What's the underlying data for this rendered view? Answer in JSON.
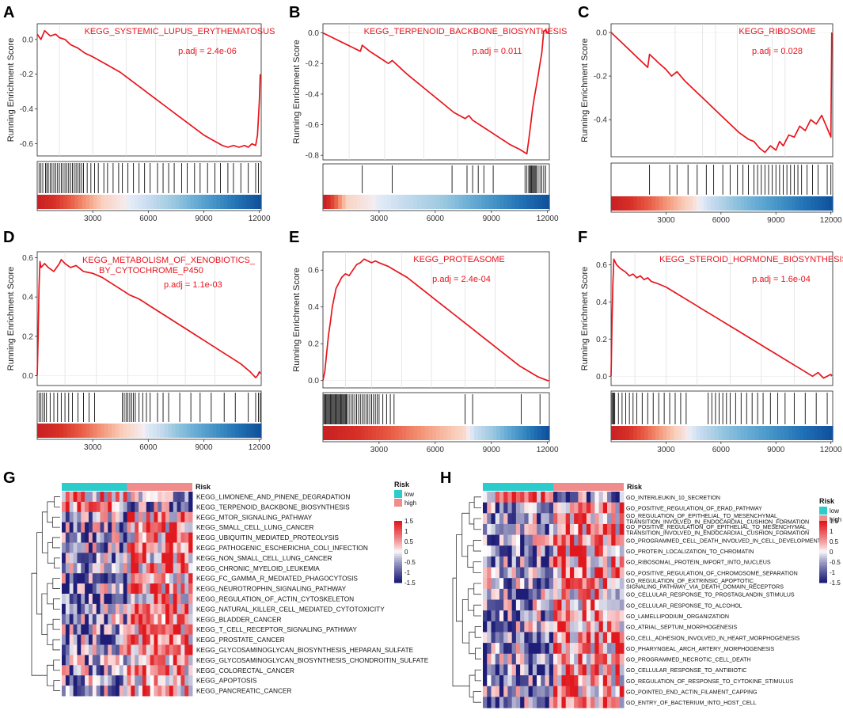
{
  "panel_letters": [
    "A",
    "B",
    "C",
    "D",
    "E",
    "F",
    "G",
    "H"
  ],
  "gsea_y_title": "Running Enrichment Score",
  "gsea_x_ticks": [
    3000,
    6000,
    9000,
    12000
  ],
  "chart_data": [
    {
      "type": "line",
      "panel": "A",
      "title": "KEGG_SYSTEMIC_LUPUS_ERYTHEMATOSUS",
      "padj": "p.adj = 2.4e-06",
      "xlim": [
        0,
        12100
      ],
      "ylim": [
        -0.67,
        0.09
      ],
      "yticks": [
        0.0,
        -0.2,
        -0.4,
        -0.6
      ],
      "ytick_labels": [
        "0.0",
        "-0.2",
        "-0.4",
        "-0.6"
      ],
      "x": [
        0,
        200,
        400,
        700,
        1000,
        1200,
        1500,
        1800,
        2200,
        2600,
        3000,
        3500,
        4000,
        4500,
        5000,
        5500,
        6000,
        6500,
        7000,
        7500,
        8000,
        8500,
        9000,
        9500,
        10000,
        10300,
        10600,
        10900,
        11200,
        11400,
        11600,
        11800,
        11900,
        11950,
        12000,
        12050
      ],
      "y": [
        0.03,
        0.0,
        0.05,
        0.02,
        0.03,
        0.01,
        0.0,
        -0.03,
        -0.05,
        -0.08,
        -0.1,
        -0.13,
        -0.16,
        -0.19,
        -0.23,
        -0.27,
        -0.31,
        -0.35,
        -0.39,
        -0.43,
        -0.47,
        -0.51,
        -0.55,
        -0.58,
        -0.61,
        -0.62,
        -0.61,
        -0.62,
        -0.61,
        -0.62,
        -0.6,
        -0.61,
        -0.55,
        -0.45,
        -0.35,
        -0.2
      ],
      "hits": [
        100,
        200,
        300,
        450,
        520,
        600,
        700,
        800,
        900,
        1000,
        1100,
        1200,
        1300,
        1400,
        1500,
        1600,
        1700,
        1800,
        1900,
        2000,
        2100,
        2200,
        2300,
        2400,
        2500,
        2700,
        2900,
        3100,
        3300,
        3600,
        3800,
        4100,
        4400,
        4600,
        4900,
        5200,
        5500,
        5800,
        6100,
        6500,
        6800,
        7100,
        7400,
        7800,
        8100,
        8500,
        8800,
        9200,
        9600,
        9900,
        10300,
        10600,
        11000,
        11400,
        11800,
        11950
      ],
      "grid": [
        1200,
        3000,
        4800,
        6400,
        8100,
        9700
      ]
    },
    {
      "type": "line",
      "panel": "B",
      "title": "KEGG_TERPENOID_BACKBONE_BIOSYNTHESIS",
      "padj": "p.adj = 0.011",
      "xlim": [
        0,
        12100
      ],
      "ylim": [
        -0.83,
        0.06
      ],
      "yticks": [
        0.0,
        -0.2,
        -0.4,
        -0.6,
        -0.8
      ],
      "ytick_labels": [
        "0.0",
        "-0.2",
        "-0.4",
        "-0.6",
        "-0.8"
      ],
      "x": [
        0,
        500,
        1000,
        1500,
        2000,
        2100,
        2500,
        3000,
        3500,
        3700,
        4500,
        5500,
        6500,
        7000,
        7600,
        7800,
        8000,
        8500,
        9000,
        9500,
        10000,
        10500,
        10900,
        11000,
        11100,
        11200,
        11300,
        11400,
        11500,
        11600,
        11700,
        11800,
        11900,
        12000,
        12100
      ],
      "y": [
        0.0,
        -0.03,
        -0.06,
        -0.09,
        -0.12,
        -0.08,
        -0.12,
        -0.16,
        -0.2,
        -0.18,
        -0.27,
        -0.37,
        -0.47,
        -0.52,
        -0.56,
        -0.54,
        -0.57,
        -0.61,
        -0.65,
        -0.69,
        -0.73,
        -0.76,
        -0.79,
        -0.7,
        -0.6,
        -0.5,
        -0.42,
        -0.35,
        -0.28,
        -0.2,
        -0.13,
        0.01,
        0.02,
        0.0,
        0.0
      ],
      "hits": [
        2100,
        3700,
        6900,
        7700,
        8000,
        8300,
        8600,
        9100,
        10800,
        10900,
        11000,
        11050,
        11100,
        11150,
        11200,
        11250,
        11300,
        11350,
        11400,
        11500,
        11600,
        11700,
        11800,
        11900
      ],
      "grid": [
        1400,
        3300,
        5400,
        7200,
        9200,
        10700
      ]
    },
    {
      "type": "line",
      "panel": "C",
      "title": "KEGG_RIBOSOME",
      "padj": "p.adj = 0.028",
      "xlim": [
        0,
        12100
      ],
      "ylim": [
        -0.57,
        0.04
      ],
      "yticks": [
        0.0,
        -0.2,
        -0.4
      ],
      "ytick_labels": [
        "0.0",
        "-0.2",
        "-0.4"
      ],
      "x": [
        0,
        500,
        1000,
        1500,
        2000,
        2100,
        2600,
        3000,
        3300,
        3600,
        4000,
        4500,
        5000,
        5500,
        6000,
        6500,
        7000,
        7500,
        7800,
        8100,
        8400,
        8700,
        9000,
        9200,
        9400,
        9700,
        10000,
        10300,
        10600,
        10900,
        11200,
        11500,
        11800,
        12000,
        12050
      ],
      "y": [
        0.0,
        -0.04,
        -0.08,
        -0.12,
        -0.16,
        -0.1,
        -0.14,
        -0.17,
        -0.2,
        -0.18,
        -0.22,
        -0.26,
        -0.3,
        -0.34,
        -0.38,
        -0.42,
        -0.46,
        -0.49,
        -0.5,
        -0.53,
        -0.55,
        -0.52,
        -0.54,
        -0.5,
        -0.52,
        -0.47,
        -0.48,
        -0.43,
        -0.45,
        -0.4,
        -0.42,
        -0.38,
        -0.44,
        -0.48,
        0.0
      ],
      "hits": [
        2100,
        3200,
        3600,
        4200,
        4700,
        5200,
        5600,
        6100,
        6500,
        6900,
        7200,
        7500,
        7800,
        8000,
        8200,
        8400,
        8600,
        8800,
        9000,
        9200,
        9400,
        9600,
        9800,
        10000,
        10200,
        10400,
        10700,
        11000,
        11300,
        11800,
        12000
      ],
      "grid": [
        3500,
        5000,
        5700,
        6900,
        8800,
        9500
      ]
    },
    {
      "type": "line",
      "panel": "D",
      "title": "KEGG_METABOLISM_OF_XENOBIOTICS_",
      "title2": "BY_CYTOCHROME_P450",
      "padj": "p.adj = 1.1e-03",
      "xlim": [
        0,
        12100
      ],
      "ylim": [
        -0.05,
        0.63
      ],
      "yticks": [
        0.0,
        0.2,
        0.4,
        0.6
      ],
      "ytick_labels": [
        "0.0",
        "0.2",
        "0.4",
        "0.6"
      ],
      "x": [
        0,
        50,
        100,
        150,
        200,
        400,
        600,
        900,
        1200,
        1300,
        1500,
        1800,
        2100,
        2500,
        3000,
        3500,
        4000,
        4500,
        5000,
        5500,
        6000,
        6500,
        7000,
        7500,
        8000,
        8500,
        9000,
        9500,
        10000,
        10500,
        11000,
        11500,
        11800,
        11900,
        12000,
        12050
      ],
      "y": [
        0.0,
        0.2,
        0.45,
        0.58,
        0.55,
        0.57,
        0.55,
        0.53,
        0.57,
        0.59,
        0.57,
        0.55,
        0.56,
        0.53,
        0.52,
        0.5,
        0.47,
        0.44,
        0.41,
        0.39,
        0.36,
        0.33,
        0.3,
        0.27,
        0.24,
        0.21,
        0.18,
        0.15,
        0.12,
        0.09,
        0.06,
        0.02,
        -0.01,
        0.0,
        0.02,
        0.01
      ],
      "hits": [
        100,
        200,
        300,
        400,
        500,
        700,
        900,
        1100,
        1300,
        1500,
        1700,
        1900,
        2200,
        2500,
        2800,
        3100,
        4600,
        4700,
        4800,
        4900,
        5000,
        5100,
        5200,
        5300,
        5500,
        5700,
        5900,
        6100,
        6500,
        6800,
        7100,
        7700,
        8300,
        8800,
        9400,
        10100,
        10700,
        11400,
        11800,
        11950,
        12050
      ],
      "grid": [
        1500,
        3200,
        4900,
        6500,
        8000,
        9600
      ]
    },
    {
      "type": "line",
      "panel": "E",
      "title": "KEGG_PROTEASOME",
      "padj": "p.adj = 2.4e-04",
      "xlim": [
        0,
        12100
      ],
      "ylim": [
        -0.04,
        0.7
      ],
      "yticks": [
        0.0,
        0.2,
        0.4,
        0.6
      ],
      "ytick_labels": [
        "0.0",
        "0.2",
        "0.4",
        "0.6"
      ],
      "x": [
        0,
        100,
        200,
        300,
        400,
        500,
        600,
        700,
        800,
        900,
        1000,
        1200,
        1400,
        1600,
        1800,
        2000,
        2200,
        2400,
        2600,
        2800,
        3000,
        3500,
        4000,
        4500,
        5000,
        5500,
        6000,
        6500,
        7000,
        7500,
        8000,
        8500,
        9000,
        9500,
        10000,
        10500,
        11000,
        11500,
        12000,
        12100
      ],
      "y": [
        0.0,
        0.05,
        0.15,
        0.25,
        0.32,
        0.4,
        0.45,
        0.5,
        0.52,
        0.54,
        0.56,
        0.58,
        0.57,
        0.6,
        0.63,
        0.64,
        0.66,
        0.65,
        0.64,
        0.65,
        0.64,
        0.62,
        0.59,
        0.56,
        0.52,
        0.48,
        0.44,
        0.4,
        0.36,
        0.32,
        0.28,
        0.24,
        0.2,
        0.16,
        0.12,
        0.08,
        0.05,
        0.02,
        0.0,
        0.0
      ],
      "hits": [
        50,
        100,
        150,
        200,
        250,
        300,
        350,
        400,
        450,
        500,
        550,
        600,
        650,
        700,
        750,
        800,
        850,
        900,
        950,
        1000,
        1050,
        1100,
        1150,
        1200,
        1250,
        1300,
        1400,
        1500,
        1600,
        1700,
        1800,
        1900,
        2000,
        2100,
        2200,
        2300,
        2400,
        2500,
        2600,
        2700,
        2800,
        2900,
        3000,
        3200,
        3400,
        3600,
        3800,
        7600,
        8000,
        10600,
        11600
      ],
      "grid": [
        1200,
        2600,
        4200,
        5800,
        7600,
        9200
      ]
    },
    {
      "type": "line",
      "panel": "F",
      "title": "KEGG_STEROID_HORMONE_BIOSYNTHESIS",
      "padj": "p.adj = 1.6e-04",
      "xlim": [
        0,
        12100
      ],
      "ylim": [
        -0.05,
        0.67
      ],
      "yticks": [
        0.0,
        0.2,
        0.4,
        0.6
      ],
      "ytick_labels": [
        "0.0",
        "0.2",
        "0.4",
        "0.6"
      ],
      "x": [
        0,
        50,
        100,
        150,
        300,
        500,
        800,
        1000,
        1200,
        1400,
        1600,
        1800,
        2000,
        2200,
        2500,
        3000,
        3500,
        4000,
        4500,
        5000,
        5500,
        6000,
        6500,
        7000,
        7500,
        8000,
        8500,
        9000,
        9500,
        10000,
        10500,
        11000,
        11300,
        11600,
        11800,
        12000,
        12050
      ],
      "y": [
        0.0,
        0.3,
        0.5,
        0.63,
        0.6,
        0.58,
        0.56,
        0.54,
        0.55,
        0.53,
        0.54,
        0.52,
        0.53,
        0.51,
        0.5,
        0.48,
        0.45,
        0.42,
        0.39,
        0.36,
        0.33,
        0.3,
        0.27,
        0.24,
        0.21,
        0.18,
        0.15,
        0.12,
        0.09,
        0.06,
        0.03,
        0.0,
        0.02,
        -0.01,
        0.0,
        0.01,
        0.0
      ],
      "hits": [
        50,
        100,
        150,
        200,
        400,
        600,
        800,
        1000,
        1200,
        1400,
        1700,
        2000,
        2300,
        2600,
        2900,
        3200,
        3500,
        3800,
        4100,
        5300,
        5500,
        5700,
        5900,
        6100,
        6300,
        6500,
        6800,
        7100,
        7400,
        7700,
        8000,
        8300,
        8700,
        9100,
        9500,
        10000,
        10600,
        11200,
        11800
      ],
      "grid": [
        1300,
        3000,
        4700,
        6500,
        8200,
        10000
      ]
    },
    {
      "type": "heatmap",
      "panel": "G",
      "risk_label": "Risk",
      "legend_title": "Risk",
      "legend_groups": [
        "low",
        "high"
      ],
      "colorbar_ticks": [
        "1.5",
        "1",
        "0.5",
        "0",
        "-0.5",
        "-1",
        "-1.5"
      ],
      "color_range": [
        -1.5,
        1.5
      ],
      "n_samples": 34,
      "n_low": 17,
      "rows": [
        "KEGG_LIMONENE_AND_PINENE_DEGRADATION",
        "KEGG_TERPENOID_BACKBONE_BIOSYNTHESIS",
        "KEGG_MTOR_SIGNALING_PATHWAY",
        "KEGG_SMALL_CELL_LUNG_CANCER",
        "KEGG_UBIQUITIN_MEDIATED_PROTEOLYSIS",
        "KEGG_PATHOGENIC_ESCHERICHIA_COLI_INFECTION",
        "KEGG_NON_SMALL_CELL_LUNG_CANCER",
        "KEGG_CHRONIC_MYELOID_LEUKEMIA",
        "KEGG_FC_GAMMA_R_MEDIATED_PHAGOCYTOSIS",
        "KEGG_NEUROTROPHIN_SIGNALING_PATHWAY",
        "KEGG_REGULATION_OF_ACTIN_CYTOSKELETON",
        "KEGG_NATURAL_KILLER_CELL_MEDIATED_CYTOTOXICITY",
        "KEGG_BLADDER_CANCER",
        "KEGG_T_CELL_RECEPTOR_SIGNALING_PATHWAY",
        "KEGG_PROSTATE_CANCER",
        "KEGG_GLYCOSAMINOGLYCAN_BIOSYNTHESIS_HEPARAN_SULFATE",
        "KEGG_GLYCOSAMINOGLYCAN_BIOSYNTHESIS_CHONDROITIN_SULFATE",
        "KEGG_COLORECTAL_CANCER",
        "KEGG_APOPTOSIS",
        "KEGG_PANCREATIC_CANCER"
      ],
      "row_direction": [
        1,
        1,
        -1,
        -1,
        -1,
        -1,
        -1,
        -1,
        -1,
        -1,
        -1,
        -1,
        -1,
        -1,
        -1,
        -1,
        -1,
        -1,
        -1,
        -1
      ]
    },
    {
      "type": "heatmap",
      "panel": "H",
      "risk_label": "Risk",
      "legend_title": "Risk",
      "legend_groups": [
        "low",
        "high"
      ],
      "colorbar_ticks": [
        "1.5",
        "1",
        "0.5",
        "0",
        "-0.5",
        "-1",
        "-1.5"
      ],
      "color_range": [
        -1.5,
        1.5
      ],
      "n_samples": 34,
      "n_low": 17,
      "rows": [
        "GO_INTERLEUKIN_10_SECRETION",
        "GO_POSITIVE_REGULATION_OF_ERAD_PATHWAY",
        "GO_REGULATION_OF_EPITHELIAL_TO_MESENCHYMAL_\nTRANSITION_INVOLVED_IN_ENDOCARDIAL_CUSHION_FORMATION",
        "GO_POSITIVE_REGULATION_OF_EPITHELIAL_TO_MESENCHYMAL_\nTRANSITION_INVOLVED_IN_ENDOCARDIAL_CUSHION_FORMATION",
        "GO_PROGRAMMED_CELL_DEATH_INVOLVED_IN_CELL_DEVELOPMENT",
        "GO_PROTEIN_LOCALIZATION_TO_CHROMATIN",
        "GO_RIBOSOMAL_PROTEIN_IMPORT_INTO_NUCLEUS",
        "GO_POSITIVE_REGULATION_OF_CHROMOSOME_SEPARATION",
        "GO_REGULATION_OF_EXTRINSIC_APOPTOTIC_\nSIGNALING_PATHWAY_VIA_DEATH_DOMAIN_RECEPTORS",
        "GO_CELLULAR_RESPONSE_TO_PROSTAGLANDIN_STIMULUS",
        "GO_CELLULAR_RESPONSE_TO_ALCOHOL",
        "GO_LAMELLIPODIUM_ORGANIZATION",
        "GO_ATRIAL_SEPTUM_MORPHOGENESIS",
        "GO_CELL_ADHESION_INVOLVED_IN_HEART_MORPHOGENESIS",
        "GO_PHARYNGEAL_ARCH_ARTERY_MORPHOGENESIS",
        "GO_PROGRAMMED_NECROTIC_CELL_DEATH",
        "GO_CELLULAR_RESPONSE_TO_ANTIBIOTIC",
        "GO_REGULATION_OF_RESPONSE_TO_CYTOKINE_STIMULUS",
        "GO_POINTED_END_ACTIN_FILAMENT_CAPPING",
        "GO_ENTRY_OF_BACTERIUM_INTO_HOST_CELL"
      ],
      "row_direction": [
        1,
        -1,
        -1,
        -1,
        -1,
        -1,
        -1,
        -1,
        -1,
        -1,
        -1,
        -1,
        -1,
        -1,
        -1,
        -1,
        -1,
        -1,
        -1,
        -1
      ]
    }
  ]
}
